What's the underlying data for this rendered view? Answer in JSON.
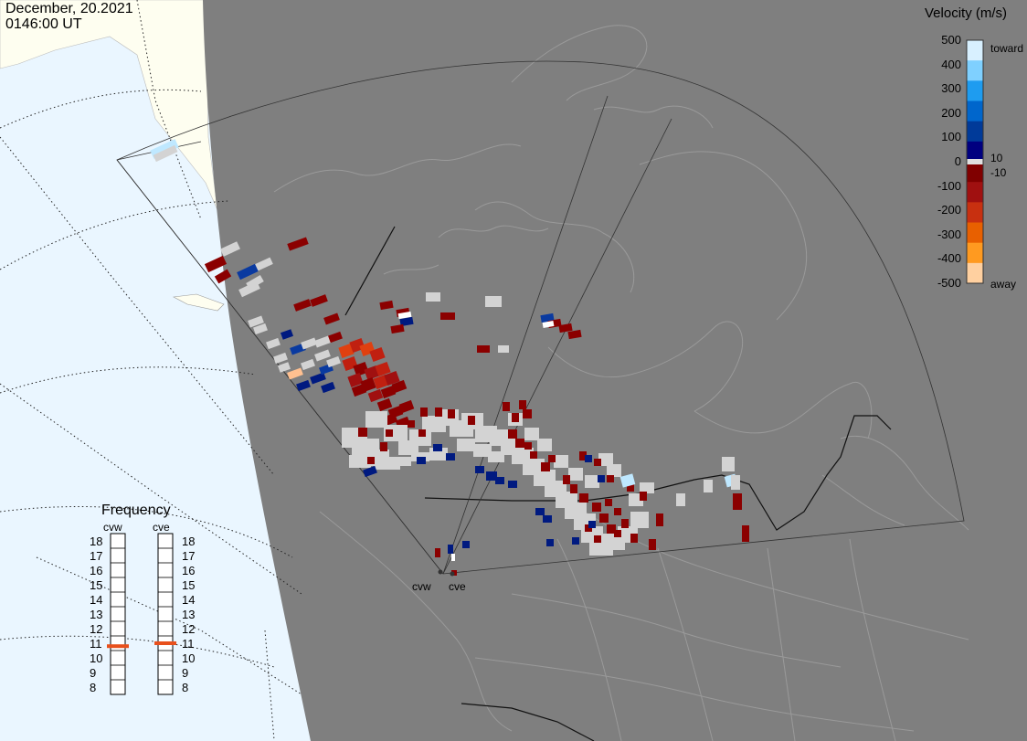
{
  "header": {
    "date": "December, 20.2021",
    "time": "0146:00 UT"
  },
  "colors": {
    "background_ocean": "#eaf6ff",
    "land_light": "#fefef0",
    "night_shade": "#7f7f7f",
    "ground_scatter": "#d3d3d3",
    "marker_orange": "#e8501c"
  },
  "velocity_scale": {
    "title": "Velocity (m/s)",
    "ticks": [
      "500",
      "400",
      "300",
      "200",
      "100",
      "0",
      "-100",
      "-200",
      "-300",
      "-400",
      "-500"
    ],
    "inner_labels": [
      "10",
      "-10"
    ],
    "toward_label": "toward",
    "away_label": "away",
    "colors": [
      "#d8f0ff",
      "#7fd0ff",
      "#1e9cf0",
      "#0066cc",
      "#003a99",
      "#000080",
      "#800000",
      "#a01010",
      "#c83010",
      "#e86000",
      "#ff9a20",
      "#ffd0a0"
    ]
  },
  "frequency": {
    "title": "Frequency",
    "radars": [
      {
        "name": "cvw",
        "selected": 10.8
      },
      {
        "name": "cve",
        "selected": 11.0
      }
    ],
    "levels": [
      "18",
      "17",
      "16",
      "15",
      "14",
      "13",
      "12",
      "11",
      "10",
      "9",
      "8"
    ]
  },
  "radar_labels": [
    "cvw",
    "cve"
  ],
  "map_features": [
    "graticule",
    "coastlines",
    "state-borders",
    "field-of-view-fans",
    "velocity-cells"
  ]
}
